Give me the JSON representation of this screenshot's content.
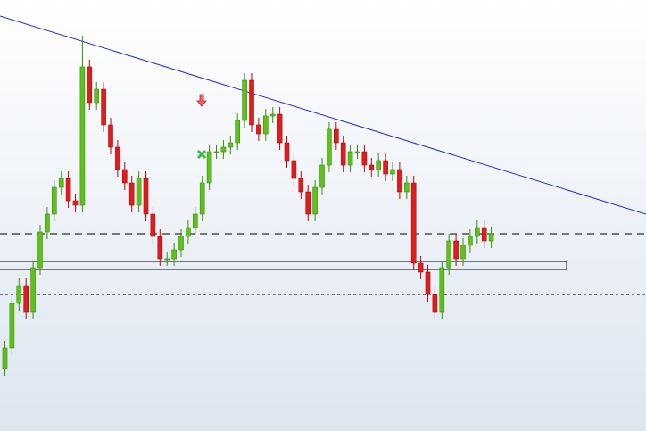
{
  "chart_data": {
    "type": "candlestick",
    "open": [
      70,
      93,
      143,
      163,
      133,
      183,
      223,
      243,
      273,
      283,
      258,
      253,
      408,
      368,
      383,
      343,
      318,
      293,
      278,
      253,
      283,
      243,
      218,
      193,
      193,
      203,
      218,
      228,
      243,
      278,
      313,
      313,
      318,
      323,
      348,
      393,
      343,
      333,
      353,
      355,
      323,
      303,
      283,
      268,
      243,
      273,
      298,
      338,
      323,
      298,
      313,
      313,
      298,
      293,
      303,
      288,
      293,
      268,
      278,
      188,
      178,
      153,
      133,
      183,
      213,
      193,
      208,
      218,
      228,
      213
    ],
    "high": [
      101,
      151,
      171,
      171,
      191,
      231,
      251,
      281,
      291,
      291,
      266,
      443,
      416,
      391,
      391,
      351,
      326,
      301,
      286,
      291,
      291,
      251,
      226,
      201,
      211,
      226,
      236,
      251,
      286,
      321,
      321,
      326,
      331,
      356,
      401,
      401,
      351,
      361,
      363,
      363,
      331,
      311,
      291,
      276,
      281,
      306,
      346,
      346,
      331,
      321,
      321,
      321,
      306,
      311,
      311,
      301,
      301,
      286,
      286,
      196,
      186,
      161,
      191,
      221,
      221,
      216,
      226,
      236,
      236,
      229
    ],
    "low": [
      62,
      85,
      135,
      125,
      125,
      175,
      215,
      235,
      265,
      250,
      245,
      245,
      360,
      360,
      335,
      310,
      285,
      270,
      245,
      245,
      235,
      210,
      185,
      185,
      185,
      195,
      210,
      220,
      235,
      270,
      305,
      305,
      310,
      315,
      340,
      335,
      325,
      325,
      345,
      315,
      295,
      275,
      260,
      235,
      235,
      265,
      290,
      315,
      290,
      290,
      305,
      290,
      285,
      285,
      280,
      280,
      260,
      260,
      180,
      170,
      145,
      125,
      125,
      175,
      185,
      185,
      200,
      210,
      205,
      205
    ],
    "close": [
      93,
      143,
      163,
      133,
      183,
      223,
      243,
      273,
      283,
      258,
      253,
      408,
      368,
      383,
      343,
      318,
      293,
      278,
      253,
      283,
      243,
      218,
      193,
      193,
      203,
      218,
      228,
      243,
      278,
      313,
      313,
      318,
      323,
      348,
      393,
      343,
      333,
      353,
      355,
      323,
      303,
      283,
      268,
      243,
      273,
      298,
      338,
      323,
      298,
      313,
      313,
      298,
      293,
      303,
      288,
      293,
      268,
      278,
      188,
      178,
      153,
      133,
      183,
      213,
      193,
      208,
      218,
      228,
      213,
      221
    ],
    "up_color": "#5fc21a",
    "down_color": "#e21b1b",
    "ylim": [
      0,
      483
    ],
    "trendline": {
      "start": 465,
      "end": 243,
      "color": "#2a2ad6"
    },
    "dashed_level": 221,
    "dotted_level": 153,
    "zone": [
      181,
      190
    ]
  }
}
